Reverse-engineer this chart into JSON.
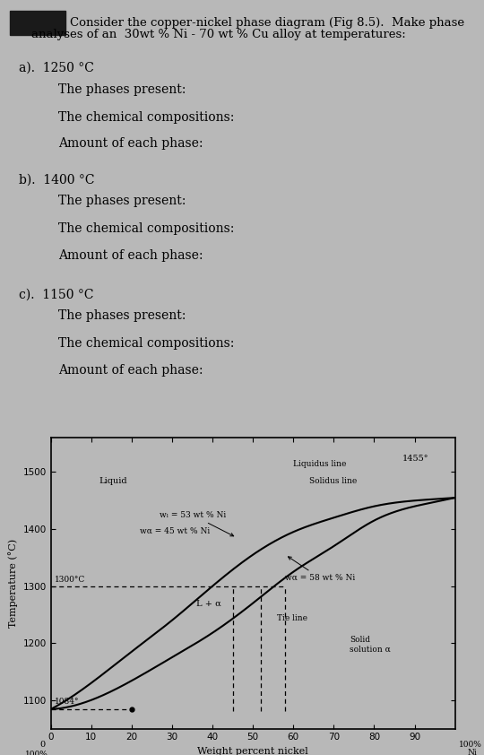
{
  "bg_color": "#b8b8b8",
  "header_rect_color": "#1a1a1a",
  "title_line1": "Consider the copper-nickel phase diagram (Fig 8.5).  Make phase",
  "title_line2": "analyses of an  30wt % Ni - 70 wt % Cu alloy at temperatures:",
  "sec_a_label": "a).  1250 °C",
  "sec_b_label": "b).  1400 °C",
  "sec_c_label": "c).  1150 °C",
  "phases_present": "The phases present:",
  "chem_comp": "The chemical compositions:",
  "amount": "Amount of each phase:",
  "text_fontsize": 10,
  "label_fontsize": 10,
  "diagram": {
    "xlim": [
      0,
      100
    ],
    "ylim": [
      1050,
      1560
    ],
    "yticks": [
      1100,
      1200,
      1300,
      1400,
      1500
    ],
    "xticks": [
      0,
      10,
      20,
      30,
      40,
      50,
      60,
      70,
      80,
      90
    ],
    "xlabel": "Weight percent nickel",
    "ylabel": "Temperature (°C)",
    "liquidus_x": [
      0,
      10,
      20,
      30,
      40,
      50,
      60,
      70,
      80,
      90,
      100
    ],
    "liquidus_y": [
      1084,
      1100,
      1134,
      1175,
      1218,
      1270,
      1325,
      1370,
      1415,
      1440,
      1455
    ],
    "solidus_x": [
      0,
      10,
      20,
      30,
      40,
      50,
      60,
      70,
      80,
      90,
      100
    ],
    "solidus_y": [
      1084,
      1130,
      1185,
      1240,
      1300,
      1355,
      1395,
      1420,
      1440,
      1450,
      1455
    ],
    "annot_1455": "1455°",
    "annot_1300C": "1300°C",
    "annot_1084": "1084°",
    "annot_liquid": "Liquid",
    "annot_liquidus": "Liquidus line",
    "annot_solidus": "Solidus line",
    "annot_L_alpha": "L + α",
    "annot_solid": "Solid\nsolution α",
    "annot_tie": "Tie line",
    "annot_wL_53": "wₗ = 53 wt % Ni",
    "annot_walpha_45": "wα = 45 wt % Ni",
    "annot_walpha_58": "wα = 58 wt % Ni",
    "dot_x": 20,
    "dot_y": 1084
  }
}
